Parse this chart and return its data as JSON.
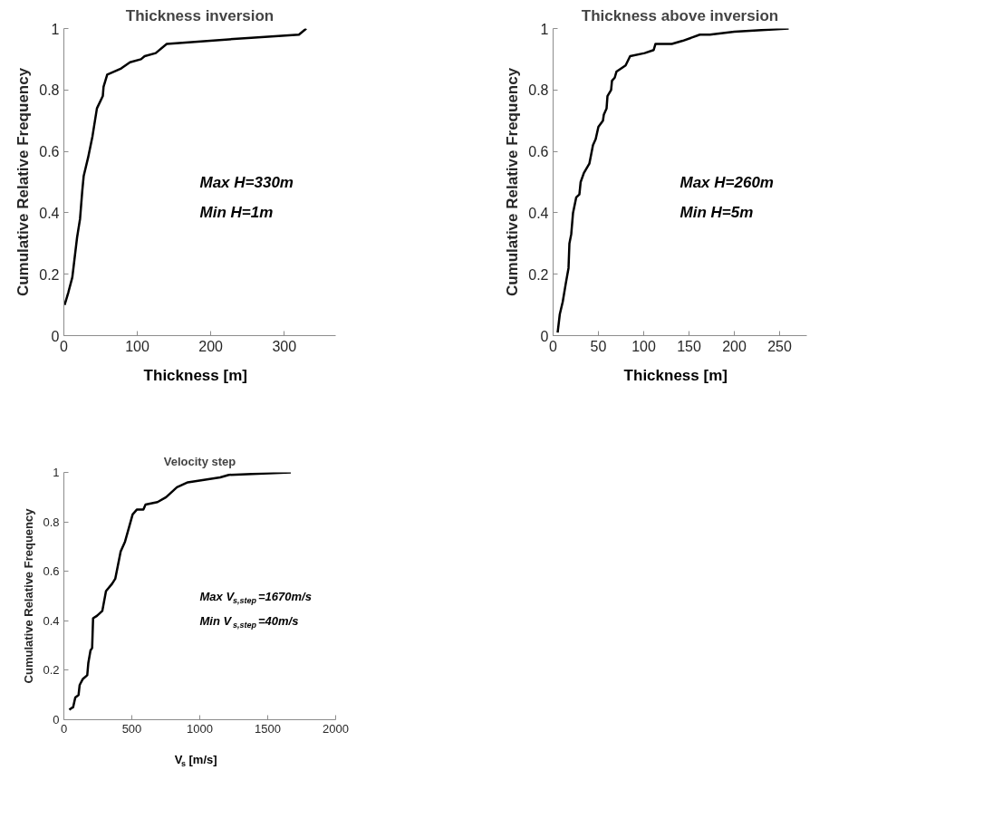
{
  "chart_data": [
    {
      "type": "line",
      "title": "Thickness inversion",
      "xlabel": "Thickness [m]",
      "ylabel": "Cumulative Relative Frequency",
      "x": [
        1,
        6,
        11.5,
        15,
        18,
        22,
        25,
        27,
        33,
        39,
        45,
        53,
        54,
        59,
        78,
        90,
        105,
        110,
        125,
        140,
        255,
        320,
        330
      ],
      "series": [
        {
          "color": "#000000",
          "values": [
            0.1,
            0.14,
            0.19,
            0.26,
            0.32,
            0.38,
            0.47,
            0.52,
            0.58,
            0.65,
            0.74,
            0.78,
            0.81,
            0.85,
            0.87,
            0.89,
            0.9,
            0.91,
            0.92,
            0.95,
            0.97,
            0.98,
            1.0
          ]
        }
      ],
      "xlim": [
        0,
        370
      ],
      "xticks": [
        0,
        100,
        200,
        300
      ],
      "ylim": [
        0,
        1
      ],
      "yticks": [
        0,
        0.2,
        0.4,
        0.6,
        0.8,
        1
      ],
      "annotations": [
        "Max H=330m",
        "Min H=1m"
      ],
      "grid": false,
      "line_style": "solid",
      "marker": "none"
    },
    {
      "type": "line",
      "title": "Thickness above inversion",
      "xlabel": "Thickness [m]",
      "ylabel": "Cumulative Relative Frequency",
      "x": [
        5,
        7.4,
        10.6,
        14,
        17,
        18,
        20,
        22,
        25.5,
        29,
        30.4,
        34,
        40,
        44,
        47,
        50,
        55,
        56,
        59,
        60,
        64,
        65,
        68,
        70,
        80,
        85,
        101,
        111,
        113,
        131,
        143,
        162,
        173,
        200,
        260
      ],
      "series": [
        {
          "color": "#000000",
          "values": [
            0.01,
            0.07,
            0.11,
            0.17,
            0.22,
            0.3,
            0.33,
            0.4,
            0.45,
            0.46,
            0.5,
            0.53,
            0.56,
            0.62,
            0.64,
            0.68,
            0.7,
            0.72,
            0.74,
            0.78,
            0.8,
            0.83,
            0.84,
            0.86,
            0.88,
            0.91,
            0.92,
            0.93,
            0.95,
            0.95,
            0.96,
            0.98,
            0.98,
            0.99,
            1.0
          ]
        }
      ],
      "xlim": [
        0,
        280
      ],
      "xticks": [
        0,
        50,
        100,
        150,
        200,
        250
      ],
      "ylim": [
        0,
        1
      ],
      "yticks": [
        0,
        0.2,
        0.4,
        0.6,
        0.8,
        1
      ],
      "annotations": [
        "Max H=260m",
        "Min H=5m"
      ],
      "grid": false,
      "line_style": "solid",
      "marker": "none"
    },
    {
      "type": "line",
      "title": "Velocity step",
      "xlabel": "V$_{s}$ [m/s]",
      "ylabel": "Cumulative Relative Frequency",
      "x": [
        40,
        56,
        68,
        84,
        108,
        116,
        140,
        172,
        180,
        196,
        208,
        215,
        243,
        283,
        310,
        355,
        378,
        418,
        450,
        506,
        538,
        585,
        601,
        689,
        752,
        832,
        912,
        1150,
        1214,
        1670
      ],
      "series": [
        {
          "color": "#000000",
          "values": [
            0.04,
            0.047,
            0.05,
            0.09,
            0.1,
            0.14,
            0.165,
            0.18,
            0.23,
            0.28,
            0.29,
            0.41,
            0.42,
            0.44,
            0.52,
            0.55,
            0.57,
            0.68,
            0.72,
            0.83,
            0.85,
            0.85,
            0.87,
            0.88,
            0.9,
            0.94,
            0.96,
            0.98,
            0.99,
            1.0
          ]
        }
      ],
      "xlim": [
        0,
        2000
      ],
      "xticks": [
        0,
        500,
        1000,
        1500,
        2000
      ],
      "ylim": [
        0,
        1
      ],
      "yticks": [
        0,
        0.2,
        0.4,
        0.6,
        0.8,
        1
      ],
      "annotations": [
        "Max V$_{s,step}$=1670m/s",
        "Min V$_{s,step}$=40m/s"
      ],
      "grid": false,
      "line_style": "solid",
      "marker": "none"
    }
  ]
}
